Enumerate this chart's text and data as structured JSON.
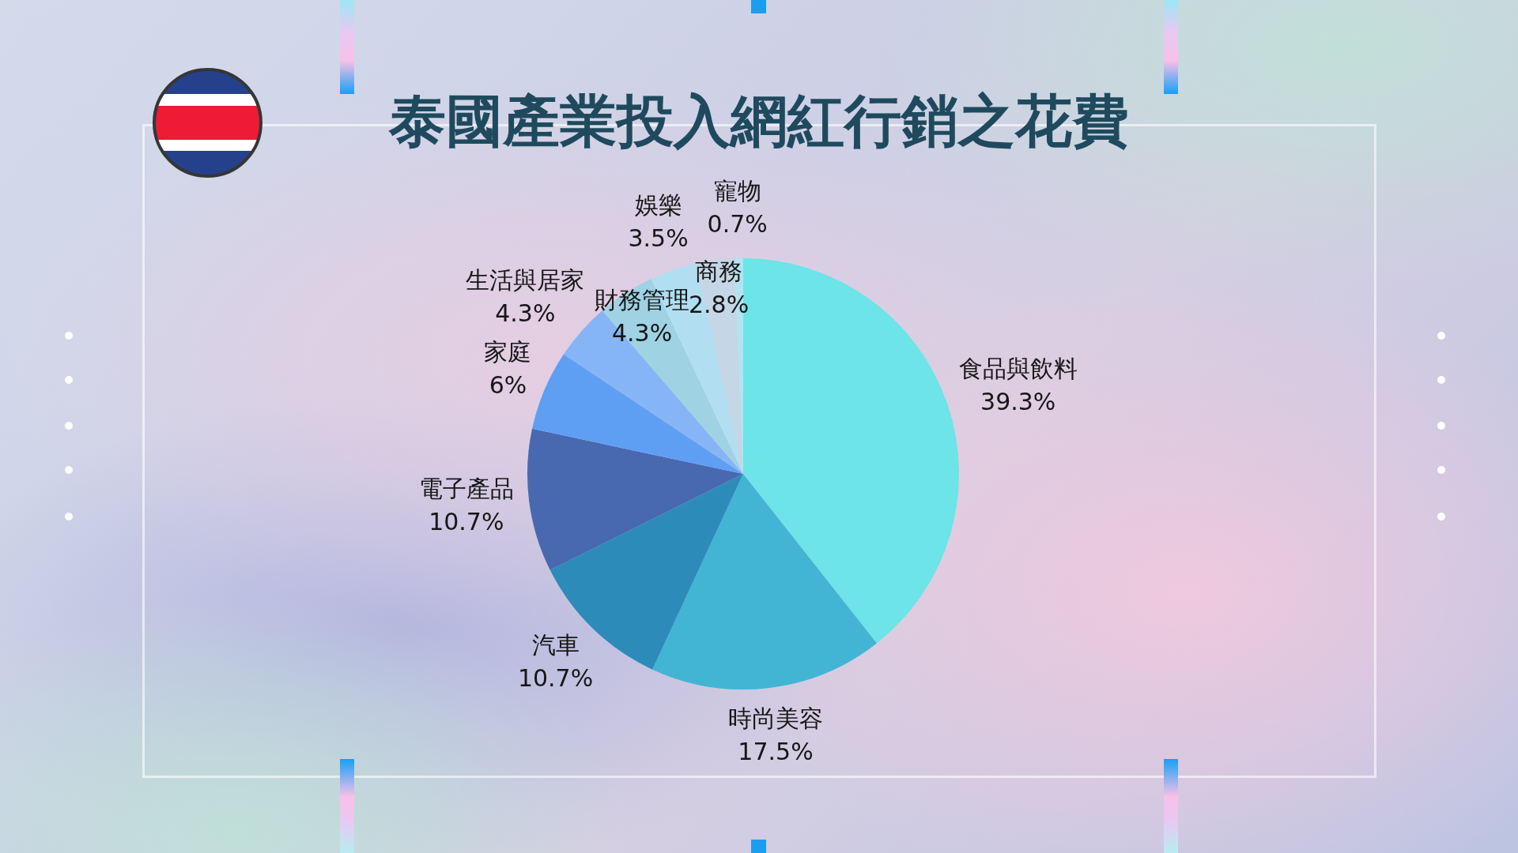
{
  "chart_data": {
    "type": "pie",
    "title": "泰國產業投入網紅行銷之花費",
    "categories": [
      "食品與飲料",
      "時尚美容",
      "汽車",
      "電子產品",
      "家庭",
      "生活與居家",
      "財務管理",
      "娛樂",
      "商務",
      "寵物"
    ],
    "values": [
      39.3,
      17.5,
      10.7,
      10.7,
      6,
      4.3,
      4.3,
      3.5,
      2.8,
      0.7
    ],
    "colors": [
      "#6ce4e8",
      "#42b5d5",
      "#2d8bb9",
      "#4869b0",
      "#5f9ff3",
      "#85b5f6",
      "#9fd2e3",
      "#b1dff1",
      "#c5d6e6",
      "#b5e2f0"
    ],
    "value_labels": [
      "39.3%",
      "17.5%",
      "10.7%",
      "10.7%",
      "6%",
      "4.3%",
      "4.3%",
      "3.5%",
      "2.8%",
      "0.7%"
    ]
  }
}
